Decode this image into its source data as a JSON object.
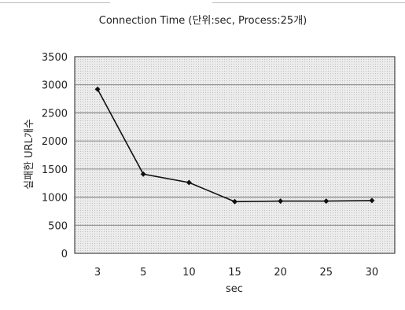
{
  "chart_data": {
    "type": "line",
    "title": "Connection Time (단위:sec, Process:25개)",
    "xlabel": "sec",
    "ylabel": "실패한 URL개수",
    "categories": [
      "3",
      "5",
      "10",
      "15",
      "20",
      "25",
      "30"
    ],
    "series": [
      {
        "values": [
          2920,
          1410,
          1260,
          920,
          930,
          930,
          940
        ]
      }
    ],
    "ylim": [
      0,
      3500
    ],
    "yticks": [
      0,
      500,
      1000,
      1500,
      2000,
      2500,
      3000,
      3500
    ],
    "grid": true,
    "legend": "none",
    "colors": {
      "line": "#111111",
      "plot_background": "#e7e7e7",
      "gridline": "#666666"
    }
  }
}
